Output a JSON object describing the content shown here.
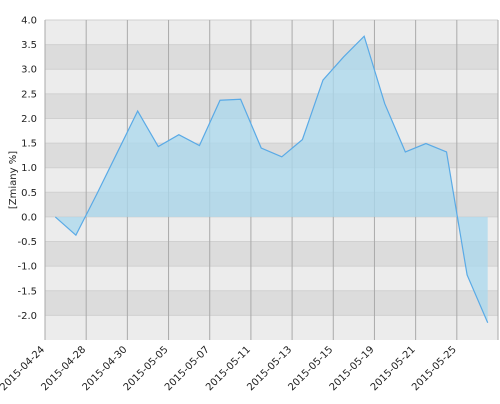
{
  "chart_data": {
    "type": "area",
    "y_label": "[Zmiany %]",
    "categories": [
      "2015-04-24",
      null,
      "2015-04-28",
      null,
      "2015-04-30",
      null,
      "2015-05-05",
      null,
      "2015-05-07",
      null,
      "2015-05-11",
      null,
      "2015-05-13",
      null,
      "2015-05-15",
      null,
      "2015-05-19",
      null,
      "2015-05-21",
      null,
      "2015-05-25",
      null
    ],
    "values": [
      0.0,
      -0.37,
      0.45,
      1.3,
      2.15,
      1.43,
      1.67,
      1.45,
      2.37,
      2.39,
      1.4,
      1.22,
      1.57,
      2.78,
      3.25,
      3.67,
      2.3,
      1.32,
      1.49,
      1.32,
      -1.18,
      -2.15
    ],
    "color": "#5aaae6",
    "fill_color": "#a9d8ee",
    "ylim": [
      -2.5,
      4.0
    ],
    "yticks": [
      {
        "value": -2.0,
        "label": "-2.0"
      },
      -1.5,
      {
        "value": -1.0,
        "label": "-1.0"
      },
      -0.5,
      {
        "value": 0.0,
        "label": "0.0"
      },
      0.5,
      {
        "value": 1.0,
        "label": "1.0"
      },
      1.5,
      {
        "value": 2.0,
        "label": "2.0"
      },
      2.5,
      {
        "value": 3.0,
        "label": "3.0"
      },
      3.5,
      {
        "value": 4.0,
        "label": "4.0"
      }
    ],
    "grid": true
  }
}
